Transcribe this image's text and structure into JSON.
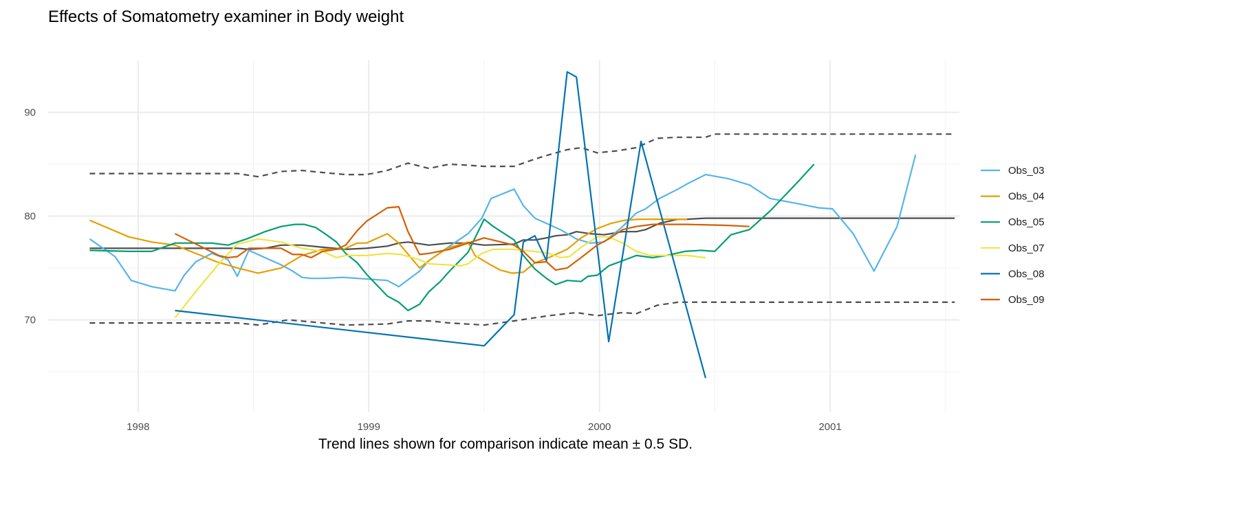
{
  "chart_data": {
    "type": "line",
    "title": "Effects of Somatometry examiner in Body weight",
    "caption": "Trend lines shown for comparison indicate mean ± 0.5 SD.",
    "xlabel": "",
    "ylabel": "",
    "xlim": [
      1997.61,
      2001.56
    ],
    "ylim": [
      61.1,
      95.0
    ],
    "x_ticks": [
      1998,
      1999,
      2000,
      2001
    ],
    "x_tick_labels": [
      "1998",
      "1999",
      "2000",
      "2001"
    ],
    "y_ticks": [
      70,
      80,
      90
    ],
    "y_tick_labels": [
      "70",
      "80",
      "90"
    ],
    "grid": true,
    "legend_position": "right",
    "series": [
      {
        "name": "Obs_03",
        "color": "#56B4E9",
        "x": [
          1997.79,
          1997.9,
          1997.97,
          1998.06,
          1998.16,
          1998.2,
          1998.25,
          1998.32,
          1998.39,
          1998.43,
          1998.48,
          1998.55,
          1998.62,
          1998.67,
          1998.71,
          1998.75,
          1998.8,
          1998.89,
          1998.95,
          1999.08,
          1999.13,
          1999.22,
          1999.26,
          1999.35,
          1999.43,
          1999.49,
          1999.53,
          1999.63,
          1999.67,
          1999.72,
          1999.77,
          1999.83,
          1999.9,
          1999.96,
          2000.02,
          2000.1,
          2000.16,
          2000.2,
          2000.26,
          2000.34,
          2000.38,
          2000.46,
          2000.56,
          2000.65,
          2000.74,
          2000.86,
          2000.95,
          2001.01,
          2001.1,
          2001.19,
          2001.29,
          2001.37
        ],
        "y": [
          77.8,
          76.1,
          73.8,
          73.2,
          72.8,
          74.3,
          75.6,
          76.4,
          75.8,
          74.2,
          76.7,
          76.0,
          75.3,
          74.7,
          74.1,
          74.0,
          74.0,
          74.1,
          74.0,
          73.8,
          73.2,
          74.7,
          75.7,
          77.1,
          78.3,
          79.8,
          81.7,
          82.6,
          81.0,
          79.8,
          79.3,
          78.7,
          77.8,
          77.4,
          77.5,
          79.0,
          80.3,
          80.7,
          81.7,
          82.6,
          83.1,
          84.0,
          83.6,
          83.0,
          81.7,
          81.2,
          80.8,
          80.7,
          78.3,
          74.7,
          79.0,
          85.9
        ]
      },
      {
        "name": "Obs_04",
        "color": "#E69F00",
        "x": [
          1997.79,
          1997.96,
          1998.06,
          1998.16,
          1998.25,
          1998.34,
          1998.43,
          1998.52,
          1998.62,
          1998.71,
          1998.8,
          1998.89,
          1998.95,
          1998.99,
          1999.08,
          1999.13,
          1999.22,
          1999.26,
          1999.34,
          1999.43,
          1999.46,
          1999.52,
          1999.57,
          1999.62,
          1999.67,
          1999.72,
          1999.78,
          1999.86,
          1999.92,
          1999.99,
          2000.05,
          2000.11,
          2000.17,
          2000.26,
          2000.38
        ],
        "y": [
          79.6,
          78.0,
          77.5,
          77.2,
          76.4,
          75.6,
          75.0,
          74.5,
          75.0,
          76.2,
          76.8,
          76.8,
          77.4,
          77.4,
          78.3,
          77.4,
          75.0,
          75.7,
          76.9,
          77.5,
          76.2,
          75.4,
          74.8,
          74.5,
          74.6,
          75.5,
          76.0,
          76.8,
          77.9,
          78.8,
          79.3,
          79.6,
          79.7,
          79.7,
          79.7
        ]
      },
      {
        "name": "Obs_05",
        "color": "#009E73",
        "x": [
          1997.79,
          1997.96,
          1998.06,
          1998.16,
          1998.25,
          1998.32,
          1998.39,
          1998.47,
          1998.55,
          1998.62,
          1998.68,
          1998.72,
          1998.77,
          1998.81,
          1998.86,
          1998.9,
          1998.95,
          1998.99,
          1999.08,
          1999.13,
          1999.17,
          1999.22,
          1999.26,
          1999.31,
          1999.35,
          1999.43,
          1999.5,
          1999.54,
          1999.63,
          1999.67,
          1999.72,
          1999.77,
          1999.81,
          1999.86,
          1999.92,
          1999.95,
          1999.99,
          2000.04,
          2000.1,
          2000.16,
          2000.23,
          2000.29,
          2000.37,
          2000.44,
          2000.5,
          2000.57,
          2000.65,
          2000.74,
          2000.86,
          2000.93
        ],
        "y": [
          76.7,
          76.6,
          76.6,
          77.4,
          77.4,
          77.4,
          77.2,
          77.8,
          78.5,
          79.0,
          79.2,
          79.2,
          78.9,
          78.3,
          77.5,
          76.4,
          75.5,
          74.4,
          72.3,
          71.7,
          70.9,
          71.5,
          72.7,
          73.7,
          74.7,
          76.5,
          79.7,
          79.0,
          77.7,
          76.2,
          74.9,
          74.0,
          73.4,
          73.8,
          73.7,
          74.2,
          74.3,
          75.2,
          75.7,
          76.2,
          76.0,
          76.2,
          76.6,
          76.7,
          76.6,
          78.2,
          78.7,
          80.5,
          83.3,
          85.0
        ]
      },
      {
        "name": "Obs_07",
        "color": "#F0E442",
        "x": [
          1998.16,
          1998.26,
          1998.35,
          1998.43,
          1998.52,
          1998.62,
          1998.71,
          1998.8,
          1998.86,
          1998.9,
          1998.99,
          1999.08,
          1999.14,
          1999.22,
          1999.26,
          1999.34,
          1999.4,
          1999.43,
          1999.49,
          1999.54,
          1999.62,
          1999.72,
          1999.78,
          1999.83,
          1999.87,
          1999.92,
          1999.99,
          2000.04,
          2000.1,
          2000.16,
          2000.22,
          2000.26,
          2000.38,
          2000.46
        ],
        "y": [
          70.2,
          73.0,
          75.4,
          77.3,
          77.8,
          77.5,
          76.9,
          76.6,
          76.0,
          76.2,
          76.2,
          76.4,
          76.3,
          75.8,
          75.4,
          75.3,
          75.2,
          75.4,
          76.4,
          76.8,
          76.8,
          76.6,
          76.4,
          76.0,
          76.1,
          77.0,
          78.0,
          78.0,
          77.4,
          76.6,
          76.2,
          76.2,
          76.2,
          76.0
        ]
      },
      {
        "name": "Obs_08",
        "color": "#0072B2",
        "x": [
          1998.16,
          1999.5,
          1999.63,
          1999.67,
          1999.72,
          1999.77,
          1999.86,
          1999.9,
          2000.04,
          2000.18,
          2000.46
        ],
        "y": [
          70.9,
          67.5,
          70.5,
          77.5,
          78.1,
          75.7,
          93.9,
          93.4,
          67.9,
          87.2,
          64.4
        ]
      },
      {
        "name": "Obs_09",
        "color": "#D55E00",
        "x": [
          1998.16,
          1998.26,
          1998.35,
          1998.39,
          1998.43,
          1998.48,
          1998.62,
          1998.67,
          1998.71,
          1998.75,
          1998.8,
          1998.86,
          1998.9,
          1998.95,
          1998.99,
          1999.08,
          1999.13,
          1999.17,
          1999.22,
          1999.26,
          1999.35,
          1999.43,
          1999.5,
          1999.63,
          1999.67,
          1999.72,
          1999.77,
          1999.81,
          1999.86,
          1999.92,
          1999.99,
          2000.04,
          2000.1,
          2000.16,
          2000.23,
          2000.38,
          2000.56,
          2000.65
        ],
        "y": [
          78.3,
          77.2,
          76.2,
          76.0,
          76.1,
          76.9,
          76.9,
          76.3,
          76.3,
          76.0,
          76.6,
          76.8,
          77.2,
          78.6,
          79.5,
          80.8,
          80.9,
          78.5,
          76.3,
          76.4,
          76.8,
          77.4,
          77.9,
          77.2,
          76.6,
          75.5,
          75.6,
          74.8,
          75.0,
          76.0,
          77.2,
          77.8,
          78.7,
          79.0,
          79.2,
          79.2,
          79.1,
          79.0
        ]
      }
    ],
    "trend_lines": [
      {
        "name": "mean",
        "color": "#4D4D4D",
        "dash": false,
        "x": [
          1997.79,
          1998.43,
          1998.48,
          1998.55,
          1998.62,
          1998.71,
          1998.8,
          1998.9,
          1998.99,
          1999.08,
          1999.13,
          1999.17,
          1999.26,
          1999.35,
          1999.43,
          1999.5,
          1999.63,
          1999.67,
          1999.72,
          1999.77,
          1999.81,
          1999.86,
          1999.9,
          1999.96,
          2000.02,
          2000.1,
          2000.16,
          2000.2,
          2000.26,
          2000.34,
          2000.38,
          2000.46,
          2000.5,
          2001.54
        ],
        "y": [
          76.9,
          76.9,
          76.8,
          76.9,
          77.2,
          77.2,
          77.0,
          76.8,
          76.9,
          77.1,
          77.4,
          77.5,
          77.2,
          77.4,
          77.4,
          77.2,
          77.3,
          77.7,
          77.7,
          77.9,
          78.1,
          78.2,
          78.5,
          78.3,
          78.2,
          78.5,
          78.5,
          78.7,
          79.3,
          79.7,
          79.7,
          79.8,
          79.8,
          79.8
        ]
      },
      {
        "name": "mean + 0.5 SD",
        "color": "#4D4D4D",
        "dash": true,
        "x": [
          1997.79,
          1998.43,
          1998.52,
          1998.62,
          1998.71,
          1998.8,
          1998.9,
          1998.99,
          1999.08,
          1999.17,
          1999.26,
          1999.35,
          1999.43,
          1999.5,
          1999.63,
          1999.72,
          1999.78,
          1999.86,
          1999.92,
          1999.99,
          2000.08,
          2000.16,
          2000.25,
          2000.34,
          2000.46,
          2000.5,
          2001.54
        ],
        "y": [
          84.1,
          84.1,
          83.8,
          84.3,
          84.4,
          84.2,
          84.0,
          84.0,
          84.4,
          85.1,
          84.6,
          85.0,
          84.9,
          84.8,
          84.8,
          85.5,
          85.9,
          86.4,
          86.6,
          86.1,
          86.3,
          86.6,
          87.5,
          87.6,
          87.6,
          87.9,
          87.9
        ]
      },
      {
        "name": "mean - 0.5 SD",
        "color": "#4D4D4D",
        "dash": true,
        "x": [
          1997.79,
          1998.43,
          1998.52,
          1998.65,
          1998.9,
          1999.08,
          1999.17,
          1999.26,
          1999.35,
          1999.5,
          1999.63,
          1999.78,
          1999.9,
          1999.99,
          2000.1,
          2000.16,
          2000.25,
          2000.34,
          2000.46,
          2000.5,
          2001.54
        ],
        "y": [
          69.7,
          69.7,
          69.5,
          70.0,
          69.5,
          69.6,
          69.9,
          69.9,
          69.7,
          69.5,
          69.9,
          70.4,
          70.7,
          70.4,
          70.7,
          70.6,
          71.4,
          71.7,
          71.7,
          71.7,
          71.7
        ]
      }
    ]
  }
}
